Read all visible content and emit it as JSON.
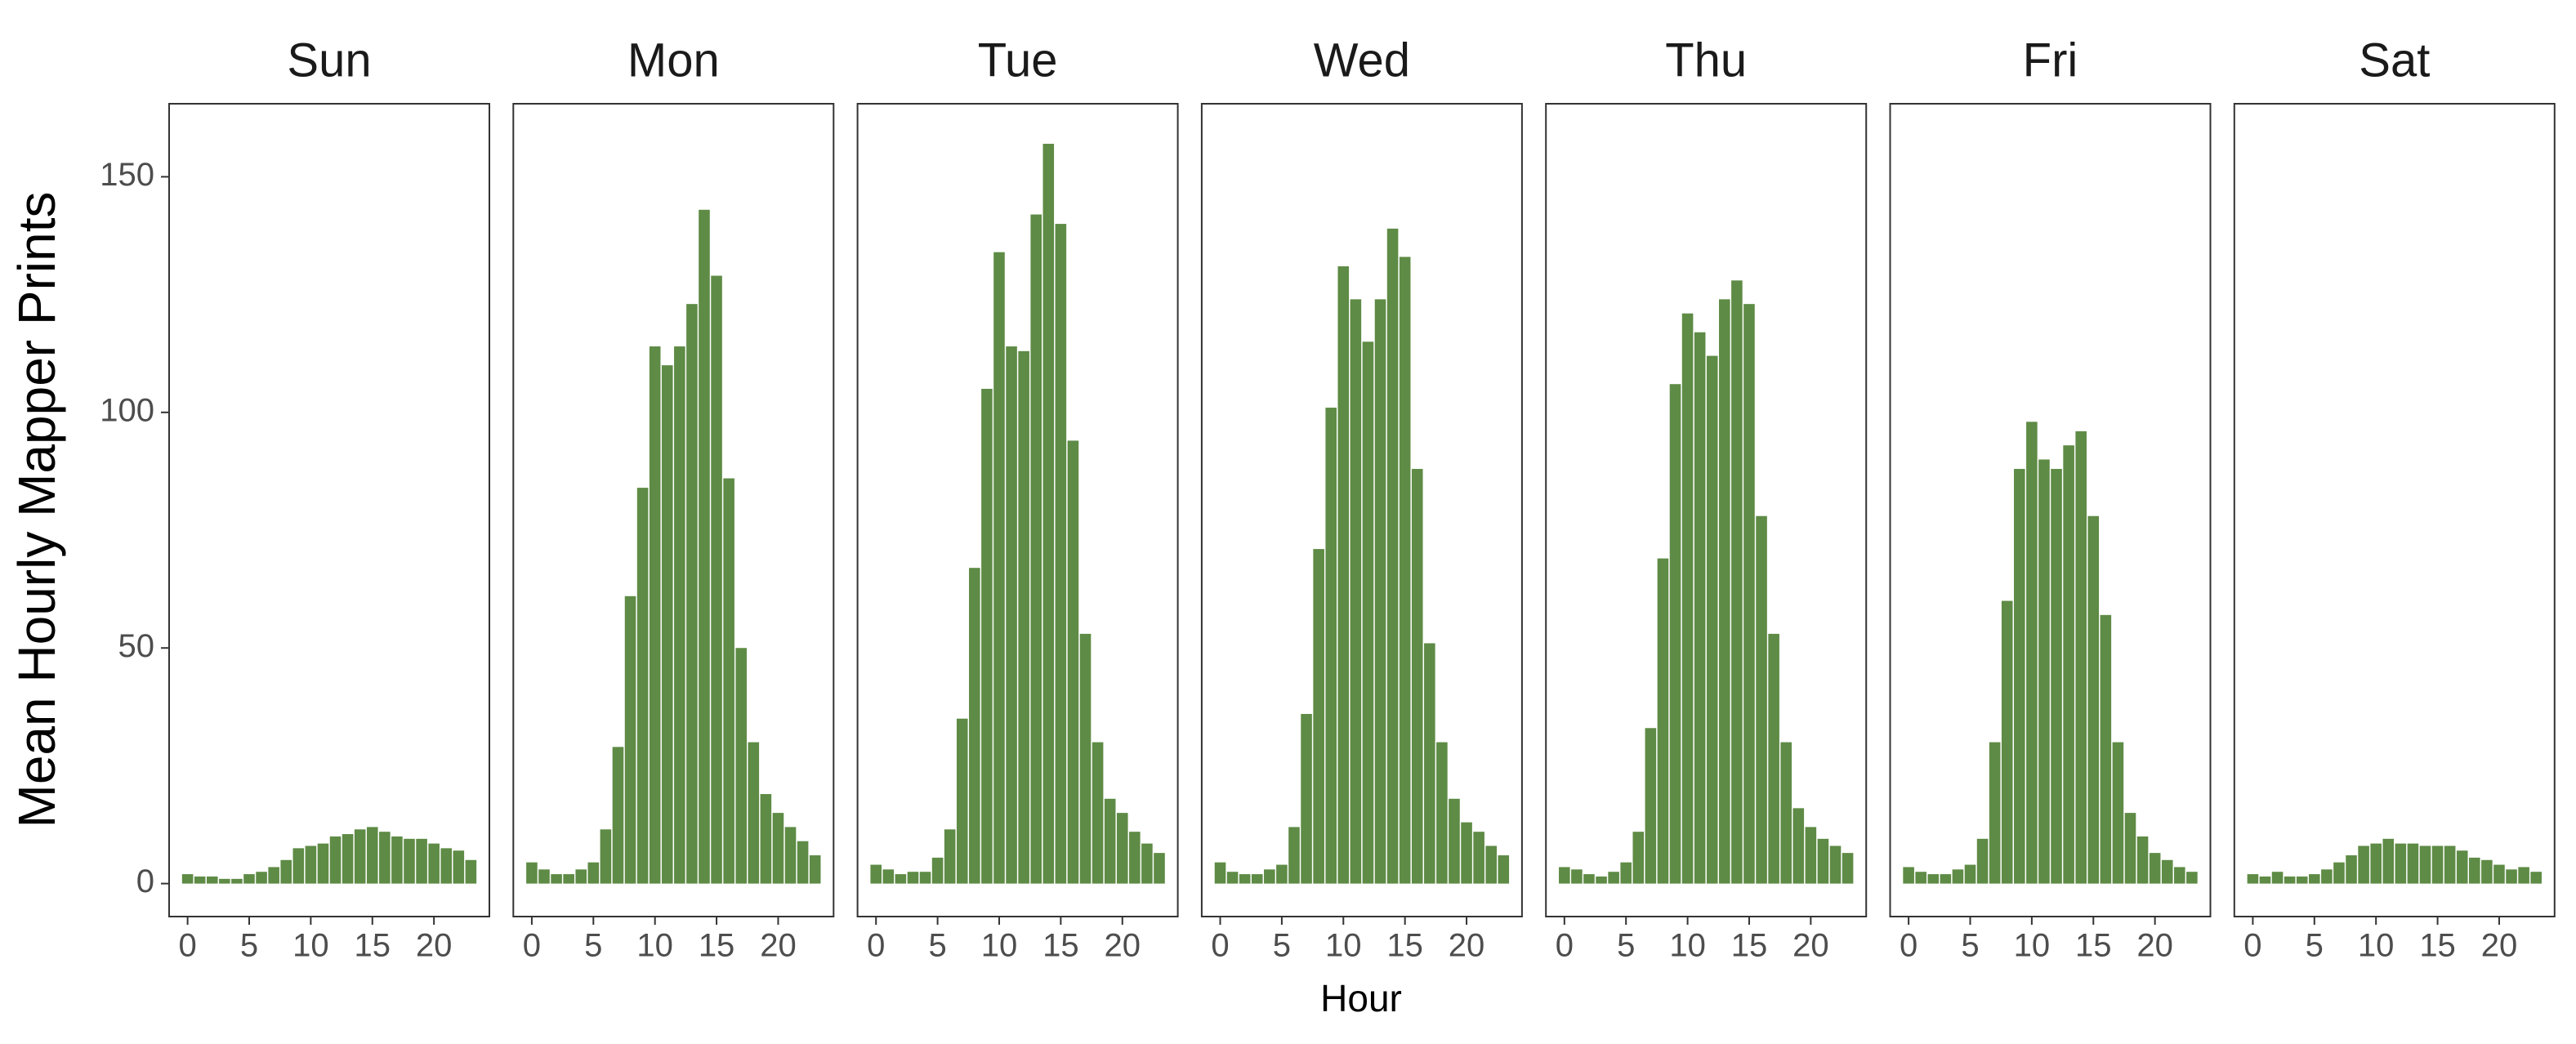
{
  "chart_data": {
    "type": "bar",
    "ylabel": "Mean Hourly Mapper Prints",
    "xlabel": "Hour",
    "color": "#5e8b45",
    "x": [
      0,
      1,
      2,
      3,
      4,
      5,
      6,
      7,
      8,
      9,
      10,
      11,
      12,
      13,
      14,
      15,
      16,
      17,
      18,
      19,
      20,
      21,
      22,
      23
    ],
    "xlim": [
      -1.5,
      24.5
    ],
    "xticks": [
      0,
      5,
      10,
      15,
      20
    ],
    "ylim": [
      -7,
      165.5
    ],
    "yticks": [
      0,
      50,
      100,
      150
    ],
    "facets": [
      {
        "title": "Sun",
        "values": [
          2,
          1.5,
          1.5,
          1,
          1,
          2,
          2.5,
          3.5,
          5,
          7.5,
          8,
          8.5,
          10,
          10.5,
          11.5,
          12,
          11,
          10,
          9.5,
          9.5,
          8.5,
          7.5,
          7,
          5
        ]
      },
      {
        "title": "Mon",
        "values": [
          4.5,
          3,
          2,
          2,
          3,
          4.5,
          11.5,
          29,
          61,
          84,
          114,
          110,
          114,
          123,
          143,
          129,
          86,
          50,
          30,
          19,
          15,
          12,
          9,
          6
        ]
      },
      {
        "title": "Tue",
        "values": [
          4,
          3,
          2,
          2.5,
          2.5,
          5.5,
          11.5,
          35,
          67,
          105,
          134,
          114,
          113,
          142,
          157,
          140,
          94,
          53,
          30,
          18,
          15,
          11,
          8.5,
          6.5
        ]
      },
      {
        "title": "Wed",
        "values": [
          4.5,
          2.5,
          2,
          2,
          3,
          4,
          12,
          36,
          71,
          101,
          131,
          124,
          115,
          124,
          139,
          133,
          88,
          51,
          30,
          18,
          13,
          11,
          8,
          6
        ]
      },
      {
        "title": "Thu",
        "values": [
          3.5,
          3,
          2,
          1.5,
          2.5,
          4.5,
          11,
          33,
          69,
          106,
          121,
          117,
          112,
          124,
          128,
          123,
          78,
          53,
          30,
          16,
          12,
          9.5,
          8,
          6.5
        ]
      },
      {
        "title": "Fri",
        "values": [
          3.5,
          2.5,
          2,
          2,
          3,
          4,
          9.5,
          30,
          60,
          88,
          98,
          90,
          88,
          93,
          96,
          78,
          57,
          30,
          15,
          10,
          6.5,
          5,
          3.5,
          2.5
        ]
      },
      {
        "title": "Sat",
        "values": [
          2,
          1.5,
          2.5,
          1.5,
          1.5,
          2,
          3,
          4.5,
          6,
          8,
          8.5,
          9.5,
          8.5,
          8.5,
          8,
          8,
          8,
          7,
          5.5,
          5,
          4,
          3,
          3.5,
          2.5
        ]
      }
    ]
  }
}
